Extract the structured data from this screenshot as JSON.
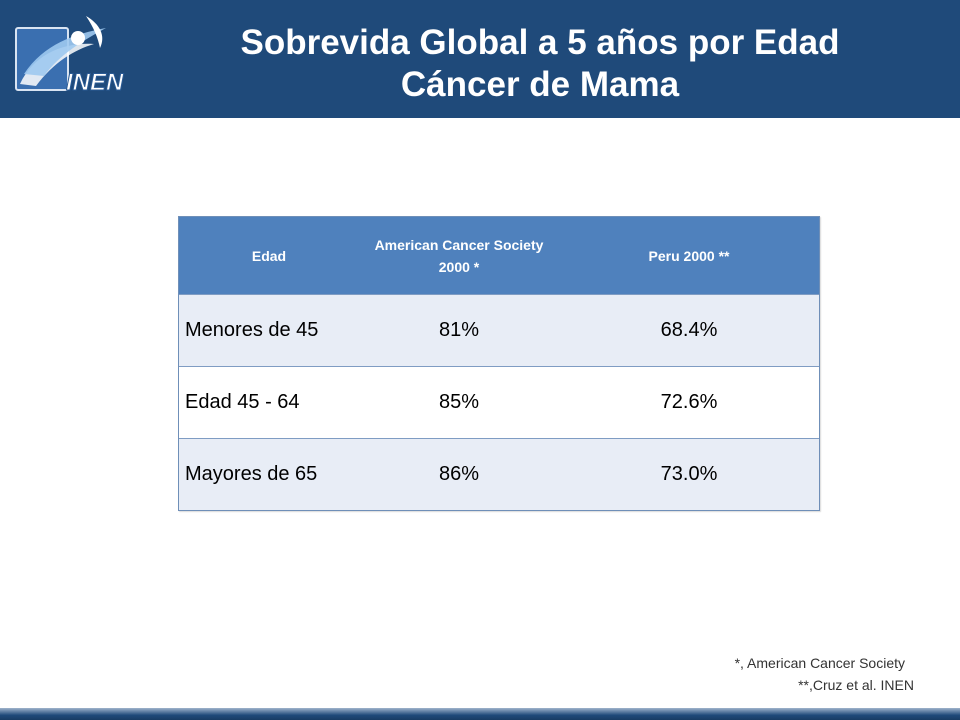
{
  "header": {
    "logo_text": "INEN",
    "title_line1": "Sobrevida Global a 5 años por Edad",
    "title_line2": "Cáncer de Mama",
    "bg_color": "#1f4a7a"
  },
  "table": {
    "columns": [
      "Edad",
      "American Cancer Society 2000 *",
      "Peru 2000 **"
    ],
    "rows": [
      [
        "Menores de 45",
        "81%",
        "68.4%"
      ],
      [
        "Edad 45 - 64",
        "85%",
        "72.6%"
      ],
      [
        "Mayores de 65",
        "86%",
        "73.0%"
      ]
    ],
    "header_color": "#4f81bd",
    "band_color": "#e8edf6"
  },
  "footnotes": {
    "note1": "*, American Cancer Society",
    "note2": "**,Cruz et al. INEN"
  }
}
